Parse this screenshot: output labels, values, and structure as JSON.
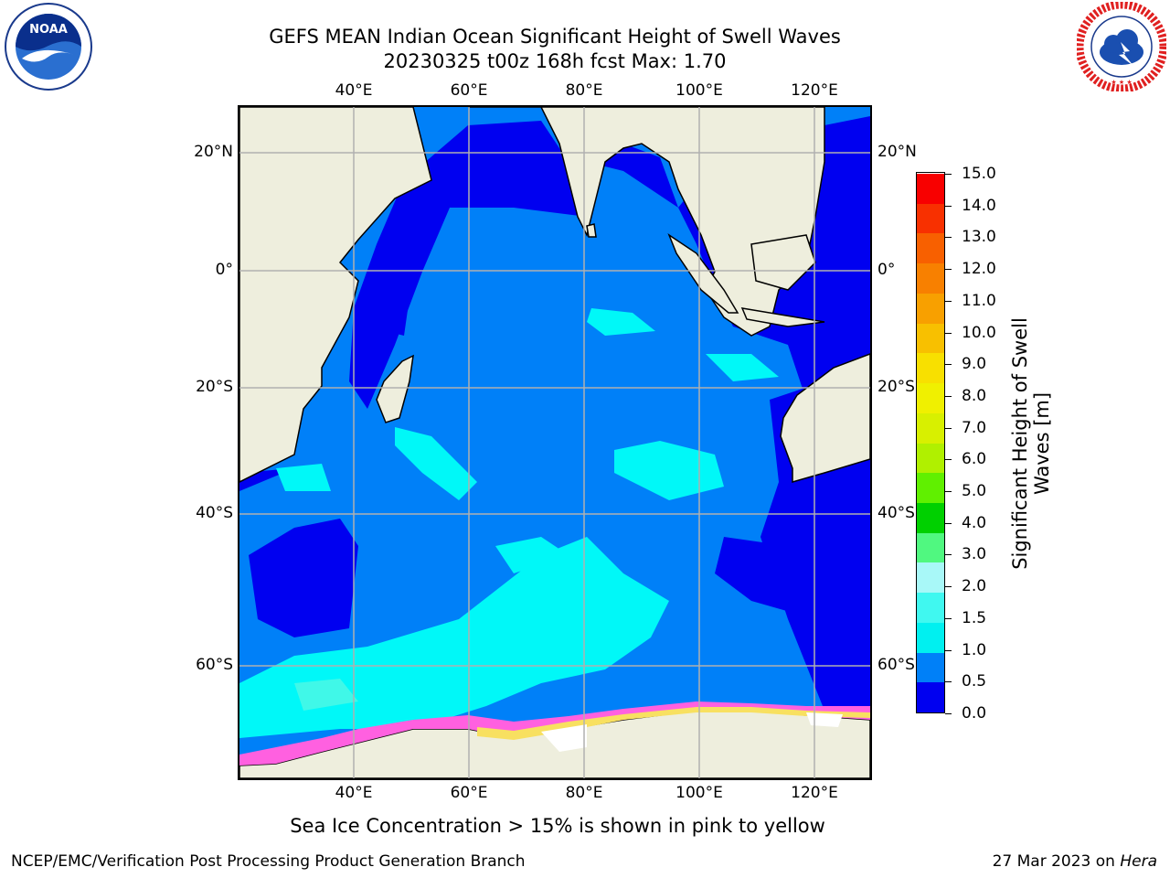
{
  "title": {
    "line1": "GEFS MEAN Indian Ocean Significant Height of Swell Waves",
    "line2": "20230325 t00z 168h fcst   Max: 1.70"
  },
  "map": {
    "lon_ticks": [
      "40°E",
      "60°E",
      "80°E",
      "100°E",
      "120°E"
    ],
    "lat_ticks": [
      "20°N",
      "0°",
      "20°S",
      "40°S",
      "60°S"
    ],
    "lon_range": [
      20,
      130
    ],
    "lat_range": [
      -76,
      28
    ],
    "colors": {
      "land": "#eeeedd",
      "ocean_0_0.5": "#0000f0",
      "ocean_0.5_1.0": "#0080f8",
      "ocean_1.0_1.5": "#00f8f8",
      "ocean_1.5_2.0": "#40f8e8",
      "sea_ice": "#ff60e0",
      "gridline": "#b0b0b0"
    }
  },
  "colorbar": {
    "title_line1": "Significant Height of Swell",
    "title_line2": "Waves [m]",
    "labels": [
      "15.0",
      "14.0",
      "13.0",
      "12.0",
      "11.0",
      "10.0",
      "9.0",
      "8.0",
      "7.0",
      "6.0",
      "5.0",
      "4.0",
      "3.0",
      "2.0",
      "1.5",
      "1.0",
      "0.5",
      "0.0"
    ],
    "bins_bottom_to_top": [
      {
        "color": "#0000f0"
      },
      {
        "color": "#0080f8"
      },
      {
        "color": "#00f0f0"
      },
      {
        "color": "#40f8f0"
      },
      {
        "color": "#a8f8f8"
      },
      {
        "color": "#50f880"
      },
      {
        "color": "#00d000"
      },
      {
        "color": "#60f000"
      },
      {
        "color": "#b0f000"
      },
      {
        "color": "#d8f000"
      },
      {
        "color": "#f0f000"
      },
      {
        "color": "#f8e000"
      },
      {
        "color": "#f8c000"
      },
      {
        "color": "#f8a000"
      },
      {
        "color": "#f88000"
      },
      {
        "color": "#f86000"
      },
      {
        "color": "#f83000"
      },
      {
        "color": "#f80000"
      }
    ]
  },
  "caption": "Sea Ice Concentration > 15% is shown in pink to yellow",
  "footer": {
    "left": "NCEP/EMC/Verification Post Processing Product Generation Branch",
    "right_date": "27 Mar 2023 on ",
    "right_host": "Hera"
  },
  "logos": {
    "noaa": "NOAA",
    "nws": "NATIONAL WEATHER SERVICE"
  }
}
